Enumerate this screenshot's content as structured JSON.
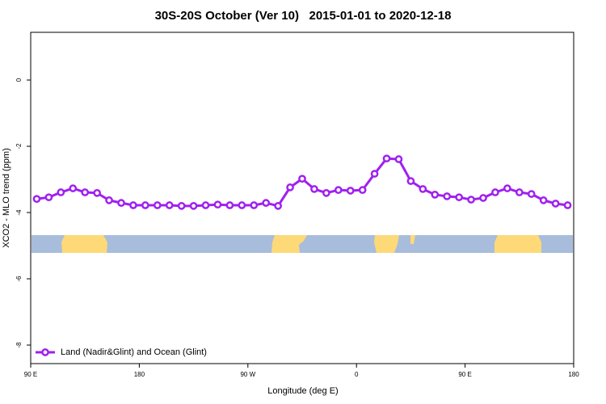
{
  "chart_data": {
    "type": "line",
    "title": "30S-20S October (Ver 10)   2015-01-01 to 2020-12-18",
    "x_label": "Longitude (deg E)",
    "y_label": "XCO2 - MLO trend (ppm)",
    "xlim": [
      90,
      540
    ],
    "ylim": [
      -8.56,
      1.44
    ],
    "xticks": [
      {
        "value": 90,
        "label": "90 E"
      },
      180,
      {
        "value": 270,
        "label": "90 W"
      },
      {
        "value": 360,
        "label": "0"
      },
      {
        "value": 450,
        "label": "90 E"
      },
      {
        "value": 540,
        "label": "180"
      }
    ],
    "yticks": [
      0,
      -2,
      -4,
      -6,
      -8
    ],
    "legend": "bottom-left",
    "x": [
      95,
      105,
      115,
      125,
      135,
      145,
      155,
      165,
      175,
      185,
      195,
      205,
      215,
      225,
      235,
      245,
      255,
      265,
      275,
      285,
      295,
      305,
      315,
      325,
      335,
      345,
      355,
      365,
      375,
      385,
      395,
      405,
      415,
      425,
      435,
      445,
      455,
      465,
      475,
      485,
      495,
      505,
      515,
      525,
      535
    ],
    "series": [
      {
        "name": "Land (Nadir&Glint) and Ocean (Glint)",
        "color": "#a020f0",
        "values": [
          -3.59,
          -3.54,
          -3.39,
          -3.27,
          -3.39,
          -3.41,
          -3.63,
          -3.71,
          -3.78,
          -3.78,
          -3.78,
          -3.78,
          -3.8,
          -3.8,
          -3.78,
          -3.76,
          -3.78,
          -3.78,
          -3.78,
          -3.71,
          -3.8,
          -3.24,
          -2.98,
          -3.29,
          -3.41,
          -3.32,
          -3.34,
          -3.32,
          -2.83,
          -2.37,
          -2.39,
          -3.05,
          -3.29,
          -3.46,
          -3.51,
          -3.54,
          -3.61,
          -3.56,
          -3.39,
          -3.27,
          -3.39,
          -3.44,
          -3.63,
          -3.73,
          -3.78
        ]
      }
    ]
  }
}
